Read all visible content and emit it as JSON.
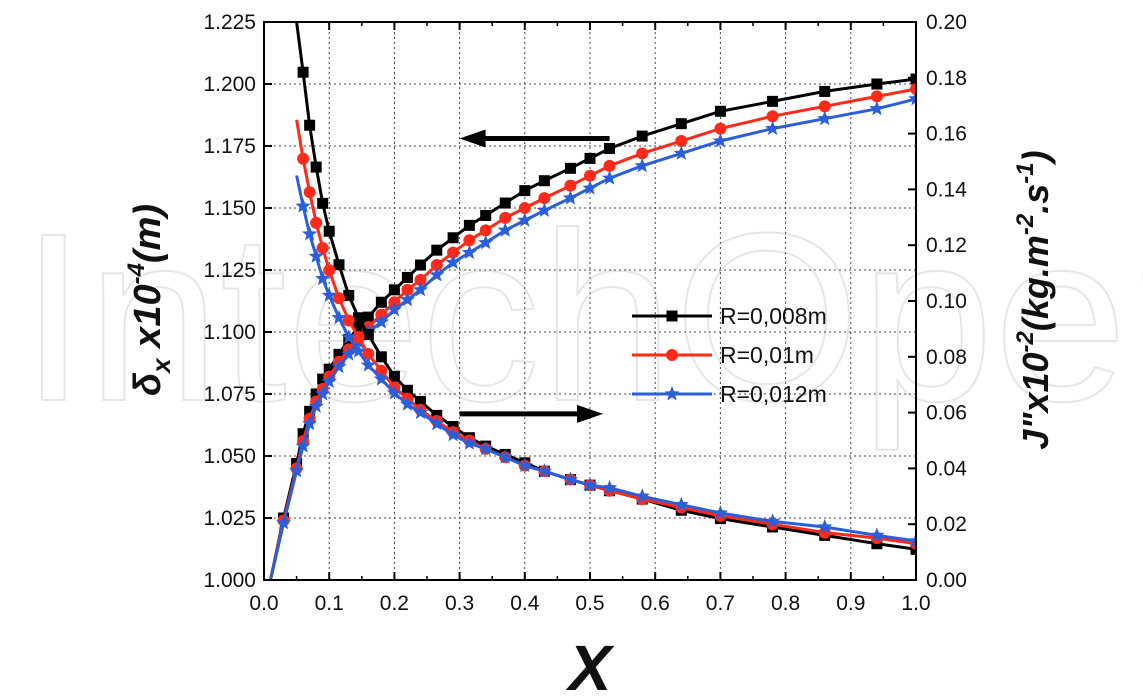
{
  "watermark": "IntechOpen",
  "chart_data": {
    "type": "line",
    "xlabel": "X",
    "ylabel_left": "δx x10-4(m)",
    "ylabel_left_parts": {
      "main": "δ",
      "sub": "x",
      "mid": " x10",
      "sup": "-4",
      "end": "(m)"
    },
    "ylabel_right": "J\"x10-2(kg.m-2.s-1)",
    "ylabel_right_parts": {
      "main": "J\"x10",
      "sup1": "-2",
      "mid": "(kg.m",
      "sup2": "-2",
      "mid2": ".s",
      "sup3": "-1",
      "end": ")"
    },
    "xlim": [
      0.0,
      1.0
    ],
    "ylim_left": [
      1.0,
      1.225
    ],
    "ylim_right": [
      0.0,
      0.2
    ],
    "x_ticks": [
      "0.0",
      "0.1",
      "0.2",
      "0.3",
      "0.4",
      "0.5",
      "0.6",
      "0.7",
      "0.8",
      "0.9",
      "1.0"
    ],
    "y_left_ticks": [
      "1.000",
      "1.025",
      "1.050",
      "1.075",
      "1.100",
      "1.125",
      "1.150",
      "1.175",
      "1.200",
      "1.225"
    ],
    "y_right_ticks": [
      "0.00",
      "0.02",
      "0.04",
      "0.06",
      "0.08",
      "0.10",
      "0.12",
      "0.14",
      "0.16",
      "0.18",
      "0.20"
    ],
    "grid": true,
    "legend_position": "right-middle",
    "annotations": [
      {
        "type": "arrow",
        "direction": "left",
        "meaning": "δx curves use left axis",
        "from": [
          0.3,
          1.178
        ],
        "to": [
          0.53,
          1.178
        ]
      },
      {
        "type": "arrow",
        "direction": "right",
        "meaning": "J\" curves use right axis",
        "from": [
          0.3,
          1.067
        ],
        "to": [
          0.52,
          1.067
        ]
      }
    ],
    "series": [
      {
        "name": "R=0,008m",
        "color": "#000000",
        "marker": "square",
        "axis": "left",
        "group": "delta",
        "x": [
          0.01,
          0.03,
          0.05,
          0.06,
          0.07,
          0.08,
          0.09,
          0.1,
          0.115,
          0.13,
          0.145,
          0.16,
          0.18,
          0.2,
          0.22,
          0.24,
          0.265,
          0.29,
          0.315,
          0.34,
          0.37,
          0.4,
          0.43,
          0.47,
          0.5,
          0.53,
          0.58,
          0.64,
          0.7,
          0.78,
          0.86,
          0.94,
          1.0
        ],
        "values": [
          1.0,
          1.025,
          1.047,
          1.059,
          1.068,
          1.075,
          1.081,
          1.085,
          1.091,
          1.097,
          1.102,
          1.106,
          1.112,
          1.117,
          1.122,
          1.127,
          1.133,
          1.138,
          1.143,
          1.147,
          1.152,
          1.157,
          1.161,
          1.166,
          1.17,
          1.174,
          1.179,
          1.184,
          1.189,
          1.193,
          1.197,
          1.2,
          1.202
        ]
      },
      {
        "name": "R=0,01m",
        "color": "#ff2a1a",
        "marker": "circle",
        "axis": "left",
        "group": "delta",
        "x": [
          0.01,
          0.03,
          0.05,
          0.06,
          0.07,
          0.08,
          0.09,
          0.1,
          0.115,
          0.13,
          0.145,
          0.16,
          0.18,
          0.2,
          0.22,
          0.24,
          0.265,
          0.29,
          0.315,
          0.34,
          0.37,
          0.4,
          0.43,
          0.47,
          0.5,
          0.53,
          0.58,
          0.64,
          0.7,
          0.78,
          0.86,
          0.94,
          1.0
        ],
        "values": [
          1.0,
          1.024,
          1.045,
          1.056,
          1.065,
          1.072,
          1.077,
          1.082,
          1.088,
          1.093,
          1.098,
          1.102,
          1.107,
          1.112,
          1.117,
          1.121,
          1.127,
          1.132,
          1.137,
          1.141,
          1.146,
          1.15,
          1.154,
          1.159,
          1.163,
          1.167,
          1.172,
          1.177,
          1.182,
          1.187,
          1.191,
          1.195,
          1.198
        ]
      },
      {
        "name": "R=0,012m",
        "color": "#2b5fd9",
        "marker": "star",
        "axis": "left",
        "group": "delta",
        "x": [
          0.01,
          0.03,
          0.05,
          0.06,
          0.07,
          0.08,
          0.09,
          0.1,
          0.115,
          0.13,
          0.145,
          0.16,
          0.18,
          0.2,
          0.22,
          0.24,
          0.265,
          0.29,
          0.315,
          0.34,
          0.37,
          0.4,
          0.43,
          0.47,
          0.5,
          0.53,
          0.58,
          0.64,
          0.7,
          0.78,
          0.86,
          0.94,
          1.0
        ],
        "values": [
          1.0,
          1.023,
          1.044,
          1.054,
          1.063,
          1.07,
          1.075,
          1.08,
          1.086,
          1.091,
          1.096,
          1.1,
          1.104,
          1.109,
          1.113,
          1.117,
          1.123,
          1.128,
          1.132,
          1.136,
          1.141,
          1.145,
          1.149,
          1.154,
          1.158,
          1.162,
          1.167,
          1.172,
          1.177,
          1.182,
          1.186,
          1.19,
          1.194
        ]
      },
      {
        "name": "R=0,008m",
        "color": "#000000",
        "marker": "square",
        "axis": "right",
        "group": "flux",
        "x": [
          0.05,
          0.06,
          0.07,
          0.08,
          0.09,
          0.1,
          0.115,
          0.13,
          0.145,
          0.16,
          0.18,
          0.2,
          0.22,
          0.24,
          0.265,
          0.29,
          0.315,
          0.34,
          0.37,
          0.4,
          0.43,
          0.47,
          0.5,
          0.53,
          0.58,
          0.64,
          0.7,
          0.78,
          0.86,
          0.94,
          1.0
        ],
        "values": [
          0.2,
          0.182,
          0.163,
          0.148,
          0.135,
          0.125,
          0.113,
          0.102,
          0.094,
          0.088,
          0.08,
          0.073,
          0.068,
          0.064,
          0.059,
          0.055,
          0.051,
          0.048,
          0.045,
          0.042,
          0.039,
          0.036,
          0.034,
          0.032,
          0.029,
          0.025,
          0.022,
          0.019,
          0.016,
          0.013,
          0.011
        ]
      },
      {
        "name": "R=0,01m",
        "color": "#ff2a1a",
        "marker": "circle",
        "axis": "right",
        "group": "flux",
        "x": [
          0.05,
          0.06,
          0.07,
          0.08,
          0.09,
          0.1,
          0.115,
          0.13,
          0.145,
          0.16,
          0.18,
          0.2,
          0.22,
          0.24,
          0.265,
          0.29,
          0.315,
          0.34,
          0.37,
          0.4,
          0.43,
          0.47,
          0.5,
          0.53,
          0.58,
          0.64,
          0.7,
          0.78,
          0.86,
          0.94,
          1.0
        ],
        "values": [
          0.165,
          0.151,
          0.139,
          0.128,
          0.119,
          0.111,
          0.101,
          0.093,
          0.087,
          0.081,
          0.075,
          0.069,
          0.065,
          0.061,
          0.057,
          0.053,
          0.05,
          0.047,
          0.044,
          0.041,
          0.039,
          0.036,
          0.034,
          0.032,
          0.029,
          0.026,
          0.023,
          0.02,
          0.017,
          0.015,
          0.013
        ]
      },
      {
        "name": "R=0,012m",
        "color": "#2b5fd9",
        "marker": "star",
        "axis": "right",
        "group": "flux",
        "x": [
          0.05,
          0.06,
          0.07,
          0.08,
          0.09,
          0.1,
          0.115,
          0.13,
          0.145,
          0.16,
          0.18,
          0.2,
          0.22,
          0.24,
          0.265,
          0.29,
          0.315,
          0.34,
          0.37,
          0.4,
          0.43,
          0.47,
          0.5,
          0.53,
          0.58,
          0.64,
          0.7,
          0.78,
          0.86,
          0.94,
          1.0
        ],
        "values": [
          0.145,
          0.134,
          0.124,
          0.116,
          0.108,
          0.102,
          0.094,
          0.087,
          0.082,
          0.077,
          0.072,
          0.067,
          0.063,
          0.06,
          0.056,
          0.052,
          0.049,
          0.047,
          0.044,
          0.041,
          0.039,
          0.036,
          0.034,
          0.033,
          0.03,
          0.027,
          0.024,
          0.021,
          0.019,
          0.016,
          0.014
        ]
      }
    ]
  }
}
